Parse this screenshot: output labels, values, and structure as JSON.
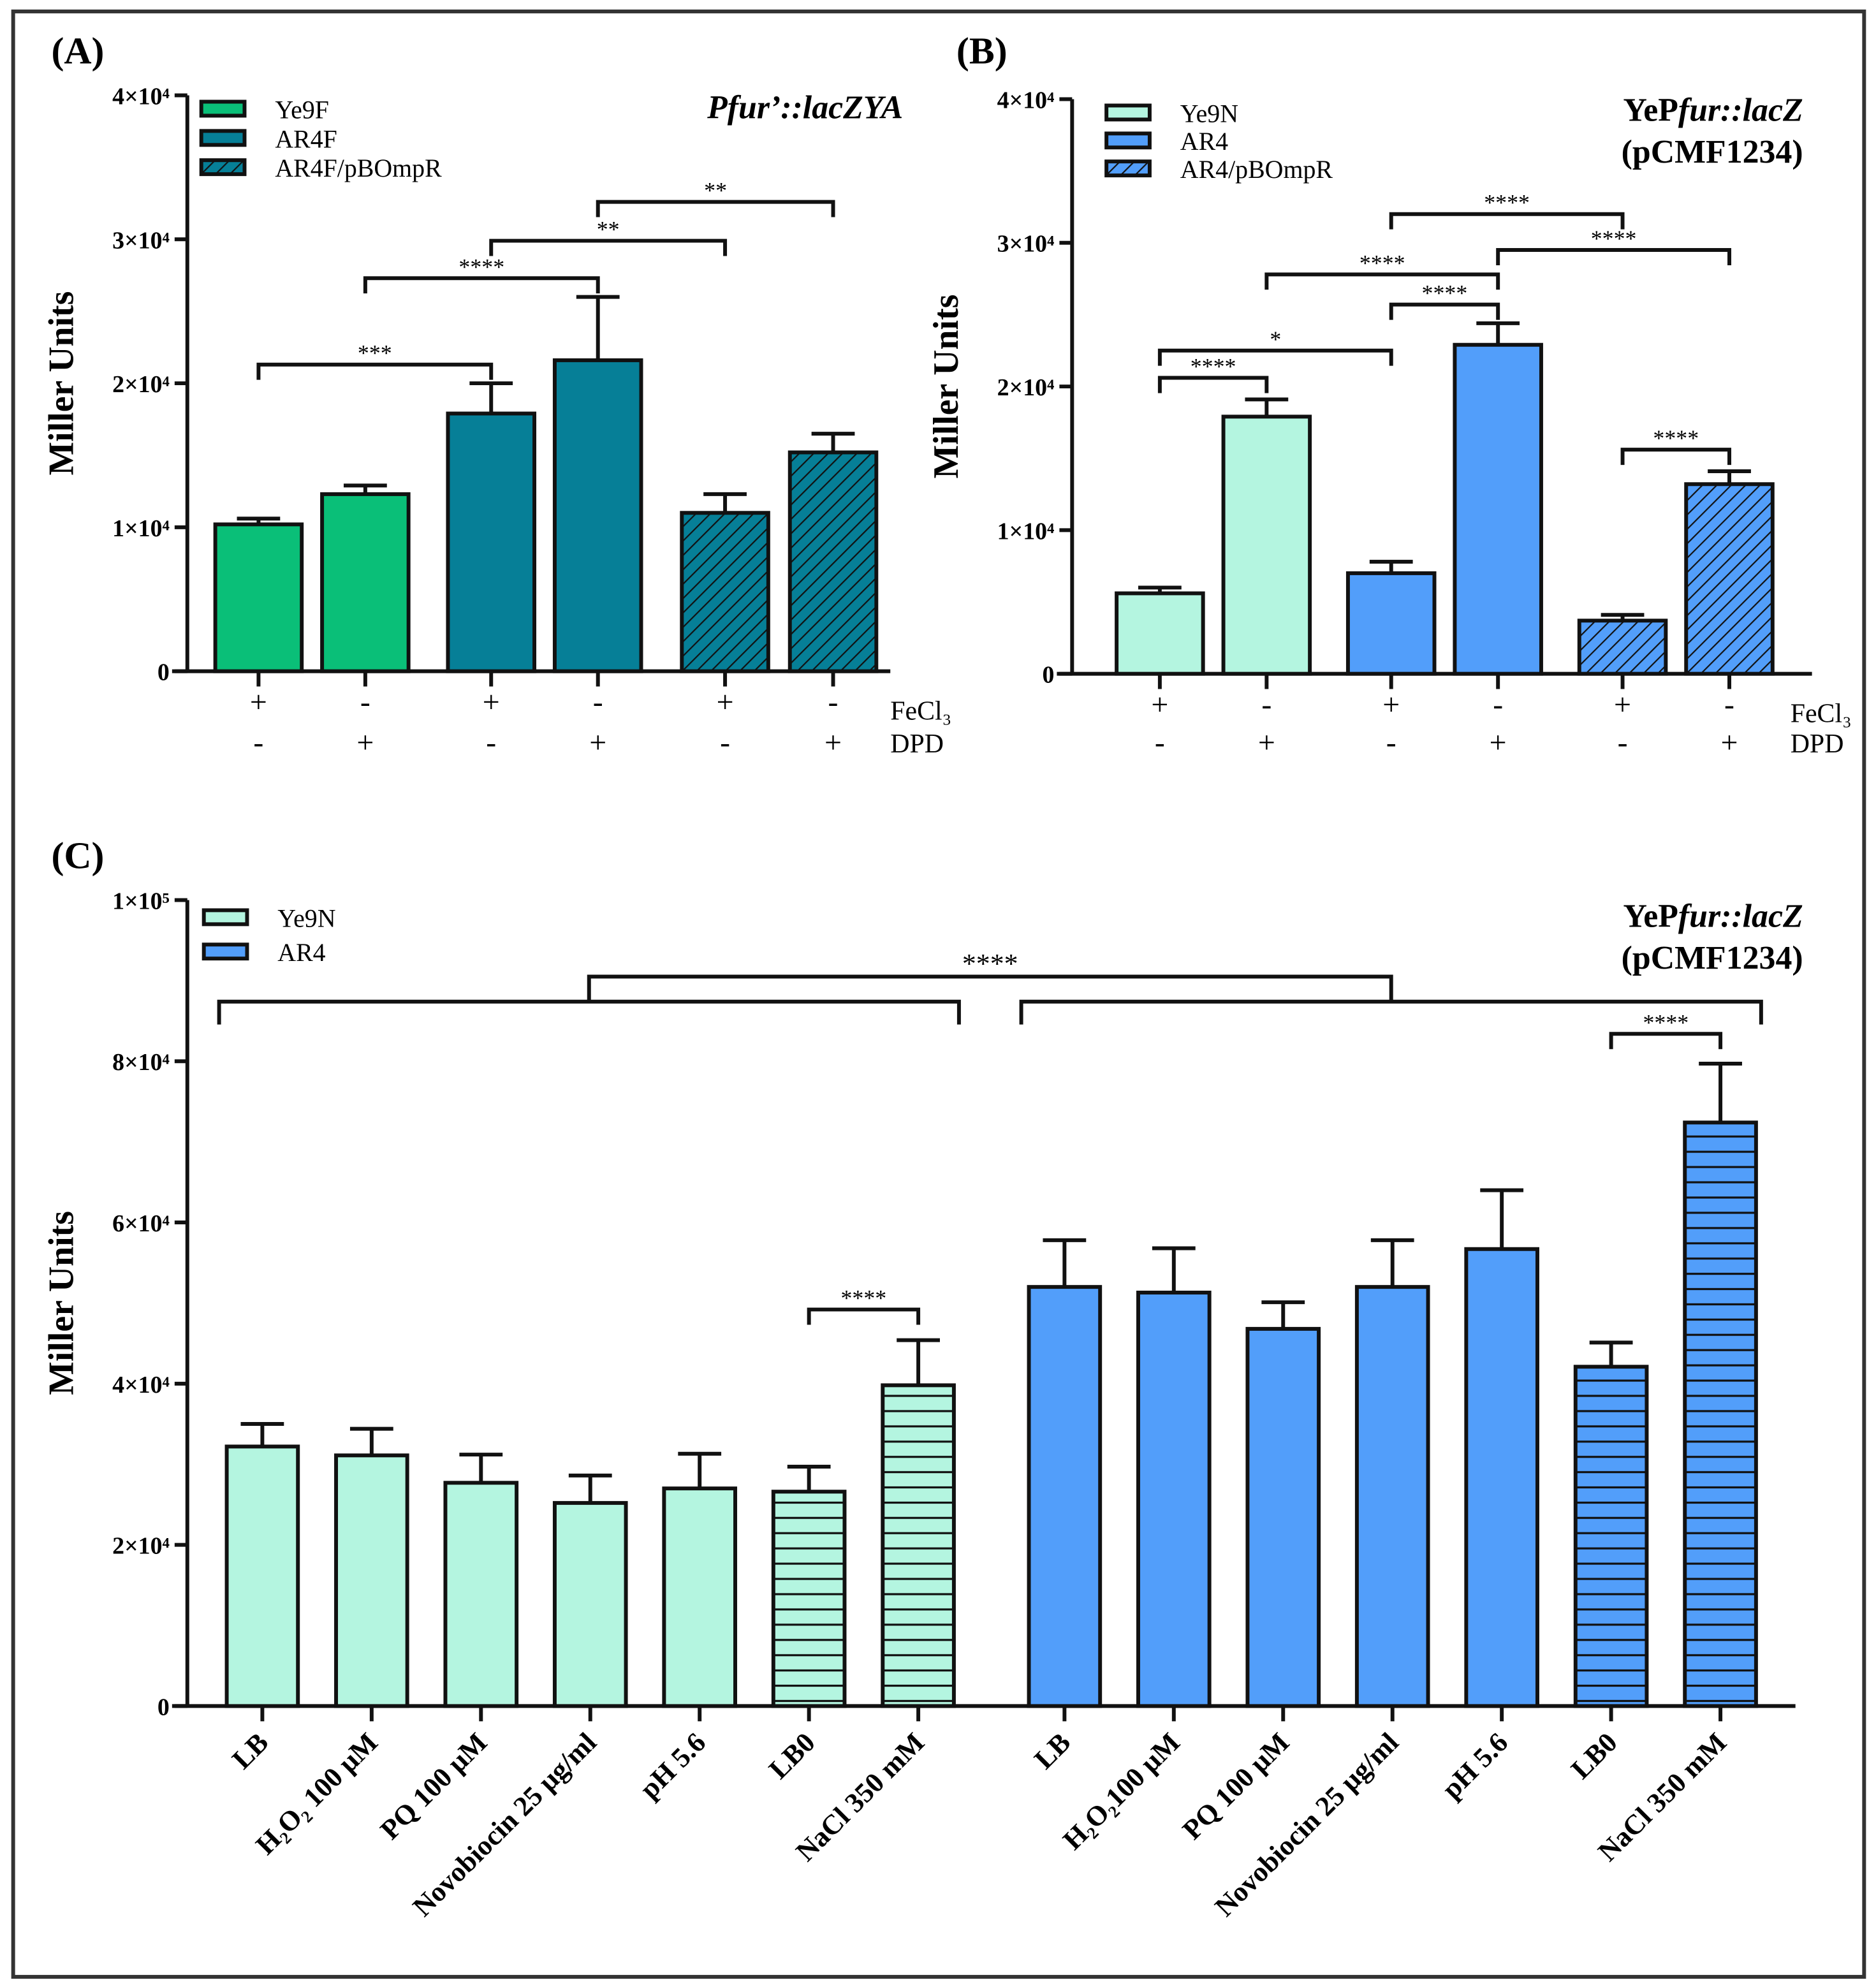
{
  "colors": {
    "Ye9F": "#0abf78",
    "AR4F": "#067f97",
    "Ye9N": "#b4f5e0",
    "AR4": "#529efa",
    "stroke": "#111111"
  },
  "chart_data": [
    {
      "panel": "(A)",
      "type": "bar",
      "title": [
        {
          "text": "P",
          "italic": false
        },
        {
          "text": "fur",
          "italic": true
        },
        {
          "text": "’::",
          "italic": false
        },
        {
          "text": "lacZYA",
          "italic": true
        }
      ],
      "title_italic_all": true,
      "ylabel": "Miller Units",
      "ylim": [
        0,
        40000
      ],
      "yticks": [
        0,
        10000,
        20000,
        30000,
        40000
      ],
      "ytick_labels": [
        "0",
        "1×10⁴",
        "2×10⁴",
        "3×10⁴",
        "4×10⁴"
      ],
      "legend": [
        {
          "name": "Ye9F",
          "color": "Ye9F",
          "hatch": false
        },
        {
          "name": "AR4F",
          "color": "AR4F",
          "hatch": false
        },
        {
          "name": "AR4F/pBOmpR",
          "color": "AR4F",
          "hatch": "diag"
        }
      ],
      "row_labels": [
        "FeCl₃",
        "DPD"
      ],
      "bars": [
        {
          "series": "Ye9F",
          "fecl3": "+",
          "dpd": "-",
          "value": 10200,
          "err": 400,
          "color": "Ye9F",
          "hatch": false
        },
        {
          "series": "Ye9F",
          "fecl3": "-",
          "dpd": "+",
          "value": 12300,
          "err": 600,
          "color": "Ye9F",
          "hatch": false
        },
        {
          "series": "AR4F",
          "fecl3": "+",
          "dpd": "-",
          "value": 17900,
          "err": 2100,
          "color": "AR4F",
          "hatch": false
        },
        {
          "series": "AR4F",
          "fecl3": "-",
          "dpd": "+",
          "value": 21600,
          "err": 4400,
          "color": "AR4F",
          "hatch": false
        },
        {
          "series": "AR4F/pBOmpR",
          "fecl3": "+",
          "dpd": "-",
          "value": 11000,
          "err": 1300,
          "color": "AR4F",
          "hatch": "diag"
        },
        {
          "series": "AR4F/pBOmpR",
          "fecl3": "-",
          "dpd": "+",
          "value": 15200,
          "err": 1300,
          "color": "AR4F",
          "hatch": "diag"
        }
      ],
      "significance": [
        {
          "from": 0,
          "to": 2,
          "y": 21300,
          "label": "***"
        },
        {
          "from": 1,
          "to": 3,
          "y": 27300,
          "label": "****"
        },
        {
          "from": 2,
          "to": 4,
          "y": 29900,
          "label": "**"
        },
        {
          "from": 3,
          "to": 5,
          "y": 32600,
          "label": "**"
        }
      ]
    },
    {
      "panel": "(B)",
      "type": "bar",
      "title": [
        {
          "text": "YeP",
          "italic": false
        },
        {
          "text": "fur::lacZ",
          "italic": true
        }
      ],
      "title2": "(pCMF1234)",
      "ylabel": "Miller Units",
      "ylim": [
        0,
        40000
      ],
      "yticks": [
        0,
        10000,
        20000,
        30000,
        40000
      ],
      "ytick_labels": [
        "0",
        "1×10⁴",
        "2×10⁴",
        "3×10⁴",
        "4×10⁴"
      ],
      "legend": [
        {
          "name": "Ye9N",
          "color": "Ye9N",
          "hatch": false
        },
        {
          "name": "AR4",
          "color": "AR4",
          "hatch": false
        },
        {
          "name": "AR4/pBOmpR",
          "color": "AR4",
          "hatch": "diag"
        }
      ],
      "row_labels": [
        "FeCl₃",
        "DPD"
      ],
      "bars": [
        {
          "series": "Ye9N",
          "fecl3": "+",
          "dpd": "-",
          "value": 5600,
          "err": 400,
          "color": "Ye9N",
          "hatch": false
        },
        {
          "series": "Ye9N",
          "fecl3": "-",
          "dpd": "+",
          "value": 17900,
          "err": 1200,
          "color": "Ye9N",
          "hatch": false
        },
        {
          "series": "AR4",
          "fecl3": "+",
          "dpd": "-",
          "value": 7000,
          "err": 800,
          "color": "AR4",
          "hatch": false
        },
        {
          "series": "AR4",
          "fecl3": "-",
          "dpd": "+",
          "value": 22900,
          "err": 1500,
          "color": "AR4",
          "hatch": false
        },
        {
          "series": "AR4/pBOmpR",
          "fecl3": "+",
          "dpd": "-",
          "value": 3700,
          "err": 400,
          "color": "AR4",
          "hatch": "diag"
        },
        {
          "series": "AR4/pBOmpR",
          "fecl3": "-",
          "dpd": "+",
          "value": 13200,
          "err": 900,
          "color": "AR4",
          "hatch": "diag"
        }
      ],
      "significance": [
        {
          "from": 0,
          "to": 1,
          "y": 20600,
          "label": "****"
        },
        {
          "from": 0,
          "to": 2,
          "y": 22500,
          "label": "*"
        },
        {
          "from": 2,
          "to": 3,
          "y": 25700,
          "label": "****"
        },
        {
          "from": 1,
          "to": 3,
          "y": 27800,
          "label": "****"
        },
        {
          "from": 3,
          "to": 5,
          "y": 29500,
          "label": "****"
        },
        {
          "from": 2,
          "to": 4,
          "y": 32000,
          "label": "****"
        },
        {
          "from": 4,
          "to": 5,
          "y": 15600,
          "label": "****"
        }
      ]
    },
    {
      "panel": "(C)",
      "type": "bar",
      "title": [
        {
          "text": "YeP",
          "italic": false
        },
        {
          "text": "fur::lacZ",
          "italic": true
        }
      ],
      "title2": "(pCMF1234)",
      "ylabel": "Miller Units",
      "ylim": [
        0,
        100000
      ],
      "yticks": [
        0,
        20000,
        40000,
        60000,
        80000,
        100000
      ],
      "ytick_labels": [
        "0",
        "2×10⁴",
        "4×10⁴",
        "6×10⁴",
        "8×10⁴",
        "1×10⁵"
      ],
      "legend": [
        {
          "name": "Ye9N",
          "color": "Ye9N",
          "hatch": false
        },
        {
          "name": "AR4",
          "color": "AR4",
          "hatch": false
        }
      ],
      "bars": [
        {
          "series": "Ye9N",
          "category": "LB",
          "value": 32200,
          "err": 2800,
          "color": "Ye9N",
          "hatch": false
        },
        {
          "series": "Ye9N",
          "category": "H₂O₂ 100 μM",
          "value": 31100,
          "err": 3300,
          "color": "Ye9N",
          "hatch": false
        },
        {
          "series": "Ye9N",
          "category": "PQ 100 μM",
          "value": 27700,
          "err": 3500,
          "color": "Ye9N",
          "hatch": false
        },
        {
          "series": "Ye9N",
          "category": "Novobiocin 25 μg/ml",
          "value": 25200,
          "err": 3400,
          "color": "Ye9N",
          "hatch": false
        },
        {
          "series": "Ye9N",
          "category": "pH 5.6",
          "value": 27000,
          "err": 4300,
          "color": "Ye9N",
          "hatch": false
        },
        {
          "series": "Ye9N",
          "category": "LB0",
          "value": 26600,
          "err": 3100,
          "color": "Ye9N",
          "hatch": "horiz"
        },
        {
          "series": "Ye9N",
          "category": "NaCl 350 mM",
          "value": 39800,
          "err": 5600,
          "color": "Ye9N",
          "hatch": "horiz"
        },
        {
          "series": "AR4",
          "category": "LB",
          "value": 52000,
          "err": 5800,
          "color": "AR4",
          "hatch": false
        },
        {
          "series": "AR4",
          "category": "H₂O₂100 μM",
          "value": 51300,
          "err": 5500,
          "color": "AR4",
          "hatch": false
        },
        {
          "series": "AR4",
          "category": "PQ 100 μM",
          "value": 46800,
          "err": 3300,
          "color": "AR4",
          "hatch": false
        },
        {
          "series": "AR4",
          "category": "Novobiocin 25 μg/ml",
          "value": 52000,
          "err": 5800,
          "color": "AR4",
          "hatch": false
        },
        {
          "series": "AR4",
          "category": "pH 5.6",
          "value": 56700,
          "err": 7300,
          "color": "AR4",
          "hatch": false
        },
        {
          "series": "AR4",
          "category": "LB0",
          "value": 42100,
          "err": 3000,
          "color": "AR4",
          "hatch": "horiz"
        },
        {
          "series": "AR4",
          "category": "NaCl 350 mM",
          "value": 72400,
          "err": 7300,
          "color": "AR4",
          "hatch": "horiz"
        }
      ],
      "significance": [
        {
          "from": 5,
          "to": 6,
          "y": 49200,
          "label": "****"
        },
        {
          "from": 12,
          "to": 13,
          "y": 83400,
          "label": "****"
        }
      ],
      "group_significance": {
        "groups": [
          [
            0,
            6
          ],
          [
            7,
            13
          ]
        ],
        "y": 87400,
        "top": 90500,
        "label": "****"
      }
    }
  ]
}
